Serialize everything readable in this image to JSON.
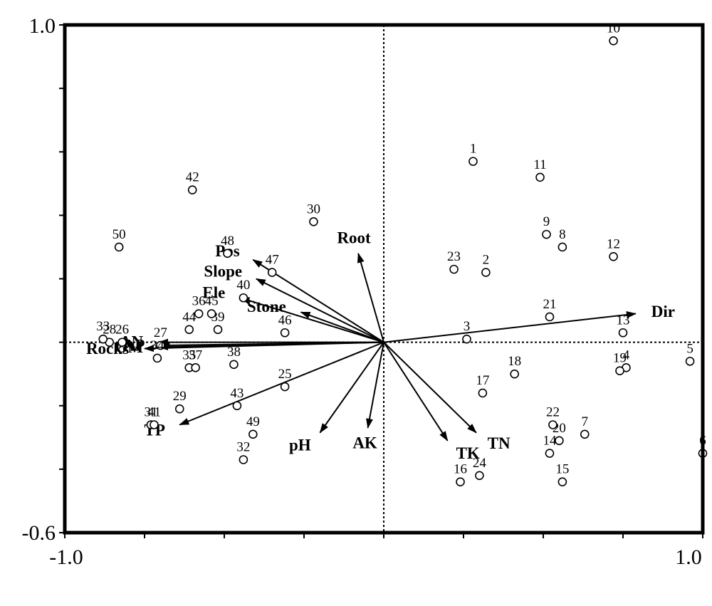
{
  "chart_data": {
    "type": "scatter",
    "subtype": "biplot",
    "title": "",
    "xlabel": "",
    "ylabel": "",
    "xlim": [
      -1.0,
      1.0
    ],
    "ylim": [
      -0.6,
      1.0
    ],
    "x_tick_labels": [
      "-1.0",
      "1.0"
    ],
    "y_tick_labels": [
      "1.0",
      "-0.6"
    ],
    "reference_lines": "dotted lines at x=0 and y=0",
    "grid": false,
    "legend": "none",
    "colors": {
      "points": "#000000",
      "arrows": "#000000",
      "background": "#ffffff"
    },
    "sites": [
      {
        "label": "1",
        "x": 0.28,
        "y": 0.57
      },
      {
        "label": "2",
        "x": 0.32,
        "y": 0.22
      },
      {
        "label": "3",
        "x": 0.26,
        "y": 0.01
      },
      {
        "label": "4",
        "x": 0.76,
        "y": -0.08
      },
      {
        "label": "5",
        "x": 0.96,
        "y": -0.06
      },
      {
        "label": "6",
        "x": 1.0,
        "y": -0.35
      },
      {
        "label": "7",
        "x": 0.63,
        "y": -0.29
      },
      {
        "label": "8",
        "x": 0.56,
        "y": 0.3
      },
      {
        "label": "9",
        "x": 0.51,
        "y": 0.34
      },
      {
        "label": "10",
        "x": 0.72,
        "y": 0.95
      },
      {
        "label": "11",
        "x": 0.49,
        "y": 0.52
      },
      {
        "label": "12",
        "x": 0.72,
        "y": 0.27
      },
      {
        "label": "13",
        "x": 0.75,
        "y": 0.03
      },
      {
        "label": "14",
        "x": 0.52,
        "y": -0.35
      },
      {
        "label": "15",
        "x": 0.56,
        "y": -0.44
      },
      {
        "label": "16",
        "x": 0.24,
        "y": -0.44
      },
      {
        "label": "17",
        "x": 0.31,
        "y": -0.16
      },
      {
        "label": "18",
        "x": 0.41,
        "y": -0.1
      },
      {
        "label": "19",
        "x": 0.74,
        "y": -0.09
      },
      {
        "label": "20",
        "x": 0.55,
        "y": -0.31
      },
      {
        "label": "21",
        "x": 0.52,
        "y": 0.08
      },
      {
        "label": "22",
        "x": 0.53,
        "y": -0.26
      },
      {
        "label": "23",
        "x": 0.22,
        "y": 0.23
      },
      {
        "label": "24",
        "x": 0.3,
        "y": -0.42
      },
      {
        "label": "25",
        "x": -0.31,
        "y": -0.14
      },
      {
        "label": "26",
        "x": -0.82,
        "y": 0.0
      },
      {
        "label": "27",
        "x": -0.7,
        "y": -0.01
      },
      {
        "label": "28",
        "x": -0.86,
        "y": 0.0
      },
      {
        "label": "29",
        "x": -0.64,
        "y": -0.21
      },
      {
        "label": "30",
        "x": -0.22,
        "y": 0.38
      },
      {
        "label": "31",
        "x": -0.73,
        "y": -0.26
      },
      {
        "label": "32",
        "x": -0.44,
        "y": -0.37
      },
      {
        "label": "33",
        "x": -0.88,
        "y": 0.01
      },
      {
        "label": "34",
        "x": -0.71,
        "y": -0.05
      },
      {
        "label": "35",
        "x": -0.61,
        "y": -0.08
      },
      {
        "label": "36",
        "x": -0.58,
        "y": 0.09
      },
      {
        "label": "37",
        "x": -0.59,
        "y": -0.08
      },
      {
        "label": "38",
        "x": -0.47,
        "y": -0.07
      },
      {
        "label": "39",
        "x": -0.52,
        "y": 0.04
      },
      {
        "label": "40",
        "x": -0.44,
        "y": 0.14
      },
      {
        "label": "41",
        "x": -0.72,
        "y": -0.26
      },
      {
        "label": "42",
        "x": -0.6,
        "y": 0.48
      },
      {
        "label": "43",
        "x": -0.46,
        "y": -0.2
      },
      {
        "label": "44",
        "x": -0.61,
        "y": 0.04
      },
      {
        "label": "45",
        "x": -0.54,
        "y": 0.09
      },
      {
        "label": "46",
        "x": -0.31,
        "y": 0.03
      },
      {
        "label": "47",
        "x": -0.35,
        "y": 0.22
      },
      {
        "label": "48",
        "x": -0.49,
        "y": 0.28
      },
      {
        "label": "49",
        "x": -0.41,
        "y": -0.29
      },
      {
        "label": "50",
        "x": -0.83,
        "y": 0.3
      }
    ],
    "vectors": [
      {
        "label": "Dir",
        "x": 1.58,
        "y": 0.18
      },
      {
        "label": "Root",
        "x": -0.16,
        "y": 0.56
      },
      {
        "label": "Pos",
        "x": -0.82,
        "y": 0.52
      },
      {
        "label": "Slope",
        "x": -0.8,
        "y": 0.4
      },
      {
        "label": "Ele",
        "x": -0.9,
        "y": 0.28
      },
      {
        "label": "Stone",
        "x": -0.52,
        "y": 0.19
      },
      {
        "label": "AN",
        "x": -1.41,
        "y": 0.0
      },
      {
        "label": "AP",
        "x": -1.4,
        "y": -0.02
      },
      {
        "label": "OM",
        "x": -1.41,
        "y": -0.03
      },
      {
        "label": "Rocks",
        "x": -1.5,
        "y": -0.04
      },
      {
        "label": "TP",
        "x": -1.28,
        "y": -0.52
      },
      {
        "label": "pH",
        "x": -0.4,
        "y": -0.57
      },
      {
        "label": "AK",
        "x": -0.1,
        "y": -0.54
      },
      {
        "label": "TK",
        "x": 0.4,
        "y": -0.62
      },
      {
        "label": "TN",
        "x": 0.58,
        "y": -0.57
      }
    ]
  }
}
